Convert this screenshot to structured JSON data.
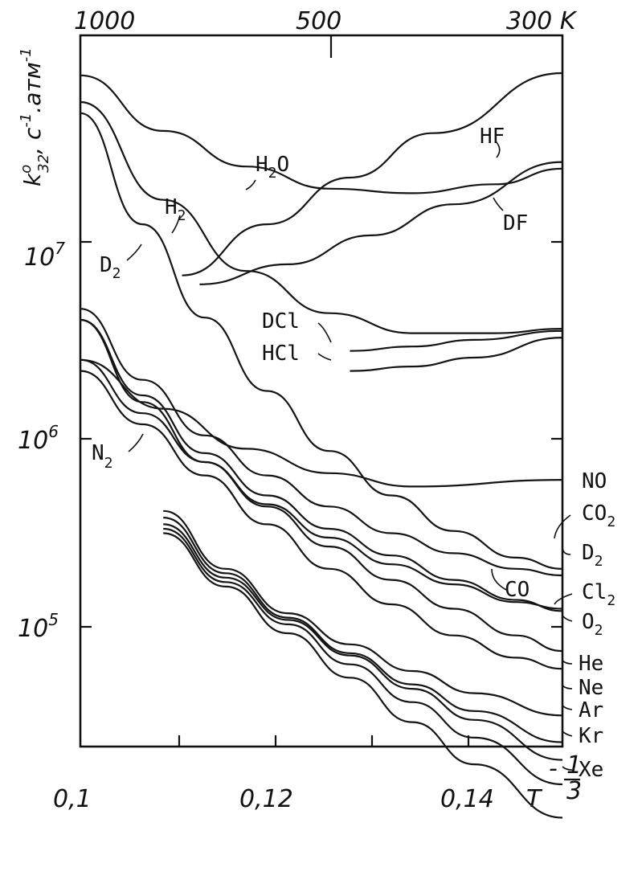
{
  "chart_data": {
    "type": "line",
    "x_scale": "linear",
    "y_scale": "log",
    "xlim": [
      0.1,
      0.1465
    ],
    "ylim_log10": [
      4.7,
      7.9
    ],
    "ylabel": "k°32 , c⁻¹·атм⁻¹",
    "ylabel_base": "k",
    "ylabel_sup": "o",
    "ylabel_sub": "32",
    "ylabel_rest": ", c",
    "ylabel_rest_sup": "-1",
    "ylabel_tail": ".атм",
    "ylabel_tail_sup": "-1",
    "xlabel_base": "T",
    "xlabel_sup": "- 1/3",
    "xlabel_num": "1",
    "xlabel_den": "3",
    "x_ticks": [
      {
        "value": 0.1,
        "label": "0,1"
      },
      {
        "value": 0.12,
        "label": "0,12"
      },
      {
        "value": 0.14,
        "label": "0,14"
      }
    ],
    "x_minor_ticks": [
      0.11,
      0.13
    ],
    "top_ticks": [
      {
        "value": 0.1,
        "label": "1000"
      },
      {
        "value": 0.126,
        "label": "500"
      },
      {
        "value": 0.1494,
        "label": "300 K"
      }
    ],
    "y_ticks": [
      {
        "log": 7,
        "base": "10",
        "exp": "7"
      },
      {
        "log": 6,
        "base": "10",
        "exp": "6"
      },
      {
        "log": 5,
        "base": "10",
        "exp": "5"
      }
    ],
    "series": [
      {
        "name": "HF",
        "sub": "",
        "x": [
          0.1098,
          0.118,
          0.126,
          0.134,
          0.1465
        ],
        "y_log": [
          6.82,
          7.05,
          7.26,
          7.46,
          7.73
        ]
      },
      {
        "name": "H2O",
        "sub": "2",
        "x": [
          0.1,
          0.108,
          0.116,
          0.124,
          0.132,
          0.14,
          0.1465
        ],
        "y_log": [
          7.72,
          7.47,
          7.31,
          7.21,
          7.19,
          7.23,
          7.3
        ]
      },
      {
        "name": "DF",
        "sub": "",
        "x": [
          0.1115,
          0.12,
          0.128,
          0.136,
          0.1465
        ],
        "y_log": [
          6.78,
          6.87,
          7.0,
          7.14,
          7.33
        ]
      },
      {
        "name": "H2",
        "sub": "2",
        "x": [
          0.1,
          0.108,
          0.116,
          0.124,
          0.132,
          0.14,
          0.1465
        ],
        "y_log": [
          7.6,
          7.16,
          6.84,
          6.65,
          6.56,
          6.56,
          6.58
        ]
      },
      {
        "name": "D2",
        "sub": "2",
        "x": [
          0.1,
          0.106,
          0.112,
          0.118,
          0.124,
          0.13,
          0.136,
          0.142,
          0.1465
        ],
        "y_log": [
          7.55,
          7.05,
          6.63,
          6.3,
          6.03,
          5.83,
          5.67,
          5.55,
          5.5
        ]
      },
      {
        "name": "DCl",
        "sub": "",
        "x": [
          0.126,
          0.132,
          0.138,
          0.1465
        ],
        "y_log": [
          6.48,
          6.5,
          6.53,
          6.57
        ]
      },
      {
        "name": "HCl",
        "sub": "",
        "x": [
          0.126,
          0.132,
          0.138,
          0.1465
        ],
        "y_log": [
          6.39,
          6.41,
          6.45,
          6.54
        ]
      },
      {
        "name": "NO",
        "sub": "",
        "x": [
          0.1,
          0.108,
          0.116,
          0.124,
          0.132,
          0.1465
        ],
        "y_log": [
          6.44,
          6.22,
          6.04,
          5.93,
          5.87,
          5.9
        ]
      },
      {
        "name": "CO2",
        "sub": "2",
        "x": [
          0.1,
          0.106,
          0.112,
          0.118,
          0.124,
          0.13,
          0.136,
          0.142,
          0.1465
        ],
        "y_log": [
          6.67,
          6.35,
          6.1,
          5.92,
          5.78,
          5.66,
          5.57,
          5.5,
          5.47
        ]
      },
      {
        "name": "CO",
        "sub": "",
        "x": [
          0.1,
          0.106,
          0.112,
          0.118,
          0.124,
          0.13,
          0.136,
          0.142,
          0.1465
        ],
        "y_log": [
          6.62,
          6.25,
          5.98,
          5.79,
          5.64,
          5.52,
          5.43,
          5.35,
          5.32
        ]
      },
      {
        "name": "Cl2",
        "sub": "2",
        "x": [
          0.1,
          0.106,
          0.112,
          0.118,
          0.124,
          0.13,
          0.136,
          0.142,
          0.1465
        ],
        "y_log": [
          6.44,
          6.2,
          5.98,
          5.78,
          5.6,
          5.45,
          5.32,
          5.2,
          5.13
        ]
      },
      {
        "name": "O2",
        "sub": "2",
        "x": [
          0.1,
          0.106,
          0.112,
          0.118,
          0.124,
          0.13,
          0.136,
          0.142,
          0.1465
        ],
        "y_log": [
          6.39,
          6.15,
          5.92,
          5.7,
          5.5,
          5.34,
          5.2,
          5.1,
          5.05
        ]
      },
      {
        "name": "N2",
        "sub": "2",
        "x": [
          0.1,
          0.106,
          0.112,
          0.118,
          0.124,
          0.13,
          0.136,
          0.142,
          0.1465
        ],
        "y_log": [
          6.62,
          6.28,
          6.02,
          5.83,
          5.68,
          5.56,
          5.45,
          5.36,
          5.31
        ]
      },
      {
        "name": "He",
        "sub": "",
        "x": [
          0.108,
          0.114,
          0.12,
          0.126,
          0.132,
          0.138,
          0.1465
        ],
        "y_log": [
          5.76,
          5.5,
          5.3,
          5.16,
          5.04,
          4.94,
          4.84
        ]
      },
      {
        "name": "Ne",
        "sub": "",
        "x": [
          0.108,
          0.114,
          0.12,
          0.126,
          0.132,
          0.138,
          0.1465
        ],
        "y_log": [
          5.73,
          5.48,
          5.28,
          5.12,
          4.98,
          4.86,
          4.72
        ]
      },
      {
        "name": "Ar",
        "sub": "",
        "x": [
          0.108,
          0.114,
          0.12,
          0.126,
          0.132,
          0.138,
          0.1465
        ],
        "y_log": [
          5.7,
          5.46,
          5.27,
          5.11,
          4.96,
          4.82,
          4.64
        ]
      },
      {
        "name": "Kr",
        "sub": "",
        "x": [
          0.108,
          0.114,
          0.12,
          0.126,
          0.132,
          0.138,
          0.1465
        ],
        "y_log": [
          5.68,
          5.44,
          5.25,
          5.07,
          4.9,
          4.74,
          4.53
        ]
      },
      {
        "name": "Xe",
        "sub": "",
        "x": [
          0.108,
          0.114,
          0.12,
          0.126,
          0.132,
          0.138,
          0.1465
        ],
        "y_log": [
          5.66,
          5.42,
          5.21,
          5.01,
          4.81,
          4.62,
          4.38
        ]
      }
    ],
    "right_labels": [
      {
        "text": "NO",
        "sub": ""
      },
      {
        "text": "CO",
        "sub": "2"
      },
      {
        "text": "D",
        "sub": "2"
      },
      {
        "text": "Cl",
        "sub": "2"
      },
      {
        "text": "O",
        "sub": "2"
      },
      {
        "text": "He",
        "sub": ""
      },
      {
        "text": "Ne",
        "sub": ""
      },
      {
        "text": "Ar",
        "sub": ""
      },
      {
        "text": "Kr",
        "sub": ""
      },
      {
        "text": "Xe",
        "sub": ""
      }
    ],
    "inline_labels": [
      {
        "text": "HF",
        "sub": ""
      },
      {
        "text": "H",
        "sub": "2",
        "tail": "O"
      },
      {
        "text": "H",
        "sub": "2"
      },
      {
        "text": "DF",
        "sub": ""
      },
      {
        "text": "D",
        "sub": "2"
      },
      {
        "text": "DCl",
        "sub": ""
      },
      {
        "text": "HCl",
        "sub": ""
      },
      {
        "text": "N",
        "sub": "2"
      },
      {
        "text": "CO",
        "sub": ""
      }
    ]
  }
}
